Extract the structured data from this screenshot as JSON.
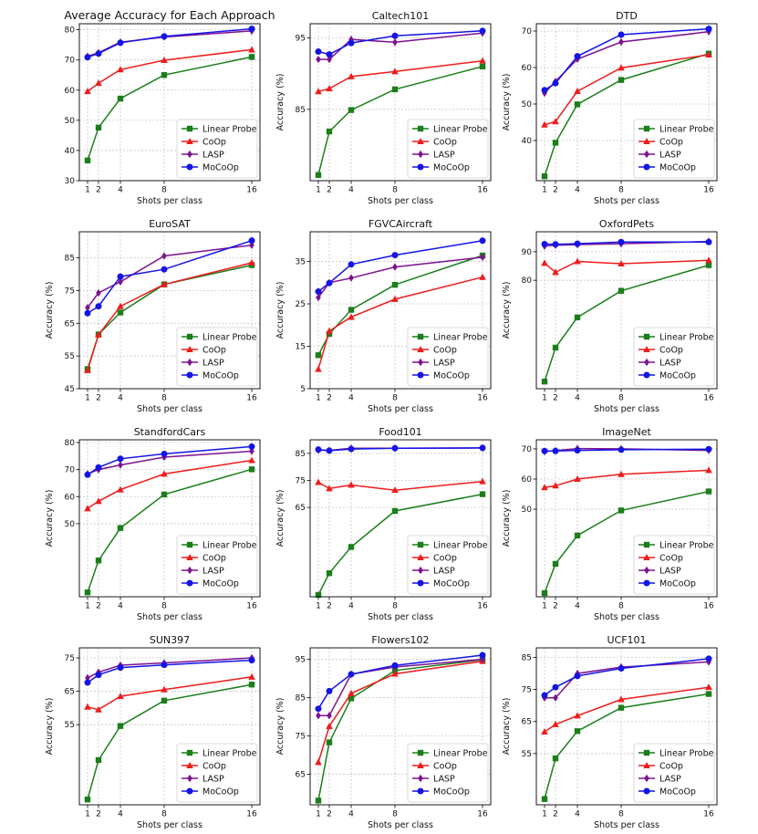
{
  "series_styles": [
    {
      "name": "Linear Probe",
      "color": "#1a7f1a",
      "marker": "square"
    },
    {
      "name": "CoOp",
      "color": "#ee1c1c",
      "marker": "triangle"
    },
    {
      "name": "LASP",
      "color": "#7d1290",
      "marker": "diamond"
    },
    {
      "name": "MoCoOp",
      "color": "#1414e6",
      "marker": "circle"
    }
  ],
  "chart_data": [
    {
      "type": "line",
      "title": "Average Accuracy for Each Approach",
      "xlabel": "Shots per class",
      "ylabel": "",
      "x": [
        1,
        2,
        4,
        8,
        16
      ],
      "xticks": [
        1,
        2,
        4,
        8,
        16
      ],
      "ylim": [
        30,
        82
      ],
      "yticks": [
        30,
        40,
        50,
        60,
        70,
        80
      ],
      "legend": "bottom-right",
      "series": [
        {
          "name": "Linear Probe",
          "values": [
            36.7,
            47.6,
            57.2,
            65.0,
            71.0
          ]
        },
        {
          "name": "CoOp",
          "values": [
            59.6,
            62.3,
            66.8,
            69.9,
            73.4
          ]
        },
        {
          "name": "LASP",
          "values": [
            71.2,
            72.4,
            75.9,
            77.6,
            79.6
          ]
        },
        {
          "name": "MoCoOp",
          "values": [
            70.9,
            72.1,
            75.7,
            77.8,
            80.3
          ]
        }
      ]
    },
    {
      "type": "line",
      "title": "Caltech101",
      "xlabel": "Shots per class",
      "ylabel": "Accuracy (%)",
      "x": [
        1,
        2,
        4,
        8,
        16
      ],
      "xticks": [
        1,
        2,
        4,
        8,
        16
      ],
      "ylim": [
        75,
        97
      ],
      "yticks": [
        85,
        95
      ],
      "legend": "bottom-right",
      "series": [
        {
          "name": "Linear Probe",
          "values": [
            75.8,
            81.9,
            84.9,
            87.8,
            91.0
          ]
        },
        {
          "name": "CoOp",
          "values": [
            87.5,
            87.9,
            89.6,
            90.3,
            91.8
          ]
        },
        {
          "name": "LASP",
          "values": [
            92.0,
            92.0,
            94.8,
            94.4,
            95.7
          ]
        },
        {
          "name": "MoCoOp",
          "values": [
            93.1,
            92.7,
            94.3,
            95.3,
            96.0
          ]
        }
      ]
    },
    {
      "type": "line",
      "title": "DTD",
      "xlabel": "Shots per class",
      "ylabel": "Accuracy (%)",
      "x": [
        1,
        2,
        4,
        8,
        16
      ],
      "xticks": [
        1,
        2,
        4,
        8,
        16
      ],
      "ylim": [
        29,
        72
      ],
      "yticks": [
        40,
        50,
        60,
        70
      ],
      "legend": "bottom-right",
      "series": [
        {
          "name": "Linear Probe",
          "values": [
            30.2,
            39.4,
            49.9,
            56.6,
            63.8
          ]
        },
        {
          "name": "CoOp",
          "values": [
            44.3,
            45.2,
            53.5,
            59.9,
            63.5
          ]
        },
        {
          "name": "LASP",
          "values": [
            53.0,
            56.2,
            62.3,
            67.0,
            69.8
          ]
        },
        {
          "name": "MoCoOp",
          "values": [
            53.8,
            55.7,
            63.1,
            69.0,
            70.6
          ]
        }
      ]
    },
    {
      "type": "line",
      "title": "EuroSAT",
      "xlabel": "Shots per class",
      "ylabel": "Accuracy (%)",
      "x": [
        1,
        2,
        4,
        8,
        16
      ],
      "xticks": [
        1,
        2,
        4,
        8,
        16
      ],
      "ylim": [
        45,
        93
      ],
      "yticks": [
        45,
        55,
        65,
        75,
        85
      ],
      "legend": "bottom-right",
      "series": [
        {
          "name": "Linear Probe",
          "values": [
            51.0,
            61.6,
            68.3,
            76.9,
            82.8
          ]
        },
        {
          "name": "CoOp",
          "values": [
            50.6,
            61.5,
            70.2,
            76.9,
            83.5
          ]
        },
        {
          "name": "LASP",
          "values": [
            69.8,
            74.3,
            77.7,
            85.6,
            88.9
          ]
        },
        {
          "name": "MoCoOp",
          "values": [
            68.1,
            70.2,
            79.3,
            81.5,
            90.3
          ]
        }
      ]
    },
    {
      "type": "line",
      "title": "FGVCAircraft",
      "xlabel": "Shots per class",
      "ylabel": "Accuracy (%)",
      "x": [
        1,
        2,
        4,
        8,
        16
      ],
      "xticks": [
        1,
        2,
        4,
        8,
        16
      ],
      "ylim": [
        5,
        42
      ],
      "yticks": [
        5,
        15,
        25,
        35
      ],
      "legend": "bottom-right",
      "series": [
        {
          "name": "Linear Probe",
          "values": [
            12.9,
            17.9,
            23.6,
            29.5,
            36.4
          ]
        },
        {
          "name": "CoOp",
          "values": [
            9.6,
            18.6,
            21.9,
            26.1,
            31.3
          ]
        },
        {
          "name": "LASP",
          "values": [
            26.5,
            30.0,
            31.1,
            33.7,
            36.0
          ]
        },
        {
          "name": "MoCoOp",
          "values": [
            27.9,
            29.9,
            34.3,
            36.5,
            39.9
          ]
        }
      ]
    },
    {
      "type": "line",
      "title": "OxfordPets",
      "xlabel": "Shots per class",
      "ylabel": "Accuracy (%)",
      "x": [
        1,
        2,
        4,
        8,
        16
      ],
      "xticks": [
        1,
        2,
        4,
        8,
        16
      ],
      "ylim": [
        42,
        97
      ],
      "yticks": [
        80,
        90
      ],
      "legend": "bottom-right",
      "series": [
        {
          "name": "Linear Probe",
          "values": [
            44.5,
            56.4,
            67.0,
            76.3,
            85.3
          ]
        },
        {
          "name": "CoOp",
          "values": [
            86.0,
            82.8,
            86.6,
            85.8,
            87.0
          ]
        },
        {
          "name": "LASP",
          "values": [
            92.0,
            92.3,
            92.5,
            92.8,
            93.6
          ]
        },
        {
          "name": "MoCoOp",
          "values": [
            92.7,
            92.6,
            92.8,
            93.4,
            93.4
          ]
        }
      ]
    },
    {
      "type": "line",
      "title": "StandfordCars",
      "xlabel": "Shots per class",
      "ylabel": "Accuracy (%)",
      "x": [
        1,
        2,
        4,
        8,
        16
      ],
      "xticks": [
        1,
        2,
        4,
        8,
        16
      ],
      "ylim": [
        23,
        81
      ],
      "yticks": [
        50,
        60,
        70,
        80
      ],
      "legend": "bottom-right",
      "series": [
        {
          "name": "Linear Probe",
          "values": [
            24.6,
            36.4,
            48.4,
            60.8,
            70.1
          ]
        },
        {
          "name": "CoOp",
          "values": [
            55.6,
            58.3,
            62.6,
            68.4,
            73.4
          ]
        },
        {
          "name": "LASP",
          "values": [
            68.4,
            70.0,
            71.7,
            74.6,
            76.8
          ]
        },
        {
          "name": "MoCoOp",
          "values": [
            68.1,
            70.8,
            74.0,
            75.8,
            78.5
          ]
        }
      ]
    },
    {
      "type": "line",
      "title": "Food101",
      "xlabel": "Shots per class",
      "ylabel": "Accuracy (%)",
      "x": [
        1,
        2,
        4,
        8,
        16
      ],
      "xticks": [
        1,
        2,
        4,
        8,
        16
      ],
      "ylim": [
        32,
        90
      ],
      "yticks": [
        65,
        75,
        85
      ],
      "legend": "bottom-right",
      "series": [
        {
          "name": "Linear Probe",
          "values": [
            32.7,
            40.7,
            50.4,
            63.7,
            69.9
          ]
        },
        {
          "name": "CoOp",
          "values": [
            74.3,
            72.0,
            73.3,
            71.4,
            74.6
          ]
        },
        {
          "name": "LASP",
          "values": [
            86.2,
            86.1,
            86.9,
            86.9,
            87.0
          ]
        },
        {
          "name": "MoCoOp",
          "values": [
            86.4,
            86.0,
            86.6,
            86.9,
            87.0
          ]
        }
      ]
    },
    {
      "type": "line",
      "title": "ImageNet",
      "xlabel": "Shots per class",
      "ylabel": "Accuracy (%)",
      "x": [
        1,
        2,
        4,
        8,
        16
      ],
      "xticks": [
        1,
        2,
        4,
        8,
        16
      ],
      "ylim": [
        21,
        73
      ],
      "yticks": [
        50,
        60,
        70
      ],
      "legend": "bottom-right",
      "series": [
        {
          "name": "Linear Probe",
          "values": [
            22.2,
            31.9,
            41.3,
            49.6,
            55.9
          ]
        },
        {
          "name": "CoOp",
          "values": [
            57.2,
            57.8,
            60.0,
            61.6,
            62.9
          ]
        },
        {
          "name": "LASP",
          "values": [
            69.1,
            69.4,
            70.1,
            70.0,
            69.5
          ]
        },
        {
          "name": "MoCoOp",
          "values": [
            69.3,
            69.3,
            69.5,
            69.7,
            69.9
          ]
        }
      ]
    },
    {
      "type": "line",
      "title": "SUN397",
      "xlabel": "Shots per class",
      "ylabel": "Accuracy (%)",
      "x": [
        1,
        2,
        4,
        8,
        16
      ],
      "xticks": [
        1,
        2,
        4,
        8,
        16
      ],
      "ylim": [
        31,
        78
      ],
      "yticks": [
        55,
        65,
        75
      ],
      "legend": "bottom-right",
      "series": [
        {
          "name": "Linear Probe",
          "values": [
            32.6,
            44.4,
            54.6,
            62.2,
            67.0
          ]
        },
        {
          "name": "CoOp",
          "values": [
            60.3,
            59.5,
            63.5,
            65.5,
            69.3
          ]
        },
        {
          "name": "LASP",
          "values": [
            69.0,
            70.7,
            72.8,
            73.5,
            75.0
          ]
        },
        {
          "name": "MoCoOp",
          "values": [
            67.6,
            69.9,
            72.1,
            72.9,
            74.3
          ]
        }
      ]
    },
    {
      "type": "line",
      "title": "Flowers102",
      "xlabel": "Shots per class",
      "ylabel": "Accuracy (%)",
      "x": [
        1,
        2,
        4,
        8,
        16
      ],
      "xticks": [
        1,
        2,
        4,
        8,
        16
      ],
      "ylim": [
        57,
        98
      ],
      "yticks": [
        65,
        75,
        85,
        95
      ],
      "legend": "bottom-right",
      "series": [
        {
          "name": "Linear Probe",
          "values": [
            58.1,
            73.3,
            84.8,
            92.1,
            94.9
          ]
        },
        {
          "name": "CoOp",
          "values": [
            68.1,
            77.5,
            86.1,
            91.2,
            94.5
          ]
        },
        {
          "name": "LASP",
          "values": [
            80.3,
            80.3,
            91.1,
            93.0,
            95.0
          ]
        },
        {
          "name": "MoCoOp",
          "values": [
            82.1,
            86.7,
            91.1,
            93.4,
            96.1
          ]
        }
      ]
    },
    {
      "type": "line",
      "title": "UCF101",
      "xlabel": "Shots per class",
      "ylabel": "Accuracy (%)",
      "x": [
        1,
        2,
        4,
        8,
        16
      ],
      "xticks": [
        1,
        2,
        4,
        8,
        16
      ],
      "ylim": [
        39,
        88
      ],
      "yticks": [
        55,
        65,
        75,
        85
      ],
      "legend": "bottom-right",
      "series": [
        {
          "name": "Linear Probe",
          "values": [
            40.8,
            53.5,
            62.0,
            69.3,
            73.6
          ]
        },
        {
          "name": "CoOp",
          "values": [
            61.8,
            64.1,
            66.8,
            71.9,
            75.7
          ]
        },
        {
          "name": "LASP",
          "values": [
            72.4,
            72.4,
            80.0,
            82.0,
            83.6
          ]
        },
        {
          "name": "MoCoOp",
          "values": [
            73.2,
            75.7,
            79.2,
            81.6,
            84.6
          ]
        }
      ]
    }
  ]
}
